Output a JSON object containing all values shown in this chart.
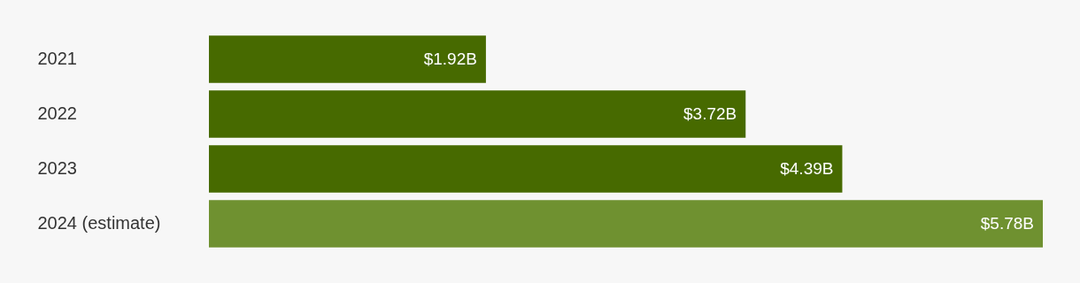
{
  "chart_data": {
    "type": "bar",
    "orientation": "horizontal",
    "categories": [
      "2021",
      "2022",
      "2023",
      "2024 (estimate)"
    ],
    "values": [
      1.92,
      3.72,
      4.39,
      5.78
    ],
    "colors": [
      "#476a00",
      "#476a00",
      "#476a00",
      "#6f9130"
    ],
    "value_labels": [
      "$1.92B",
      "$3.72B",
      "$4.39B",
      "$5.78B"
    ]
  }
}
